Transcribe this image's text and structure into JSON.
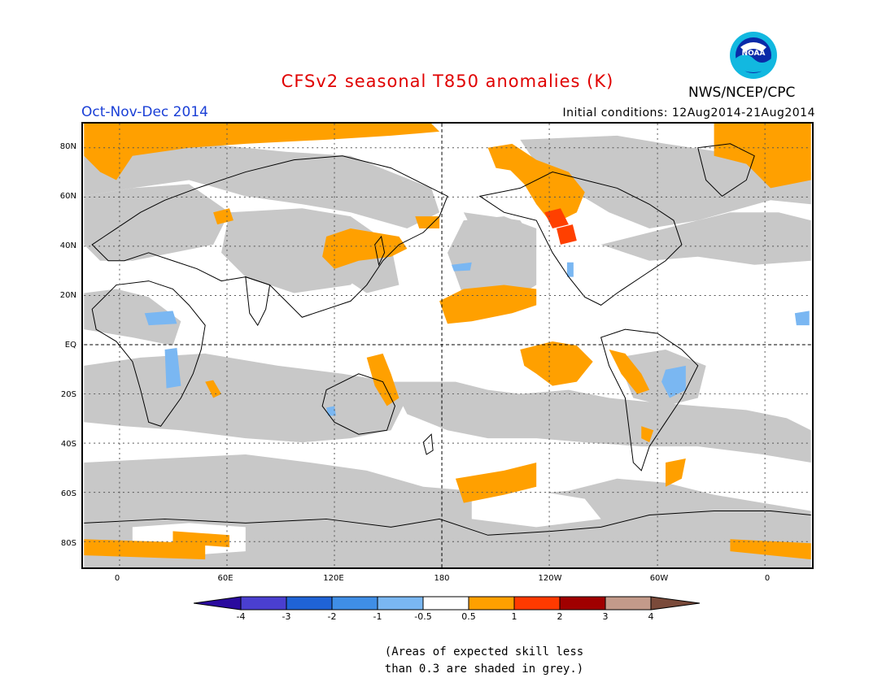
{
  "title": "CFSv2 seasonal T850 anomalies (K)",
  "season": "Oct-Nov-Dec 2014",
  "initial_conditions": "Initial conditions: 12Aug2014-21Aug2014",
  "agency": "NWS/NCEP/CPC",
  "logo_text": "NOAA",
  "lat_labels": [
    "80N",
    "60N",
    "40N",
    "20N",
    "EQ",
    "20S",
    "40S",
    "60S",
    "80S"
  ],
  "lon_labels": [
    "0",
    "60E",
    "120E",
    "180",
    "120W",
    "60W",
    "0"
  ],
  "colorbar": {
    "labels": [
      "-4",
      "-3",
      "-2",
      "-1",
      "-0.5",
      "0.5",
      "1",
      "2",
      "3",
      "4"
    ],
    "colors": [
      "#2a0a9e",
      "#4a3fd0",
      "#1f63d6",
      "#3f8ee6",
      "#7ab7f2",
      "#ffffff",
      "#ffa000",
      "#ff3a00",
      "#a00000",
      "#c39a8a",
      "#7a4a3a"
    ]
  },
  "note_line1": "(Areas of expected skill less",
  "note_line2": "than 0.3 are shaded in grey.)",
  "colors": {
    "grey": "#c8c8c8",
    "warm1": "#ffa000",
    "warm2": "#ff4000",
    "cool1": "#7ab7f2",
    "title": "#e00000",
    "season": "#1a3fd6"
  }
}
